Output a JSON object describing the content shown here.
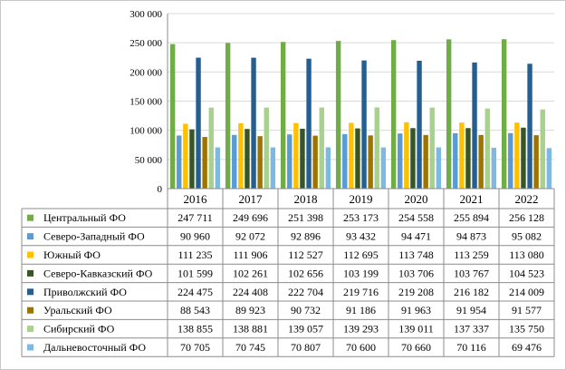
{
  "chart_data": {
    "type": "bar",
    "title": "",
    "xlabel": "",
    "ylabel": "",
    "ylim": [
      0,
      300000
    ],
    "y_ticks": [
      "0",
      "50 000",
      "100 000",
      "150 000",
      "200 000",
      "250 000",
      "300 000"
    ],
    "grid": true,
    "legend_placement": "left, as data table row headers",
    "categories": [
      "2016",
      "2017",
      "2018",
      "2019",
      "2020",
      "2021",
      "2022"
    ],
    "series": [
      {
        "name": "Центральный ФО",
        "color": "#70ad47",
        "values": [
          247711,
          249696,
          251398,
          253173,
          254558,
          255894,
          256128
        ],
        "labels": [
          "247 711",
          "249 696",
          "251 398",
          "253 173",
          "254 558",
          "255 894",
          "256 128"
        ]
      },
      {
        "name": "Северо-Западный ФО",
        "color": "#5b9bd5",
        "values": [
          90960,
          92072,
          92896,
          93432,
          94471,
          94873,
          95082
        ],
        "labels": [
          "90 960",
          "92 072",
          "92 896",
          "93 432",
          "94 471",
          "94 873",
          "95 082"
        ]
      },
      {
        "name": "Южный ФО",
        "color": "#ffc000",
        "values": [
          111235,
          111906,
          112527,
          112695,
          113748,
          113259,
          113080
        ],
        "labels": [
          "111 235",
          "111 906",
          "112 527",
          "112 695",
          "113 748",
          "113 259",
          "113 080"
        ]
      },
      {
        "name": "Северо-Кавказский ФО",
        "color": "#375623",
        "values": [
          101599,
          102261,
          102656,
          103199,
          103706,
          103767,
          104523
        ],
        "labels": [
          "101 599",
          "102 261",
          "102 656",
          "103 199",
          "103 706",
          "103 767",
          "104 523"
        ]
      },
      {
        "name": "Приволжский ФО",
        "color": "#255e91",
        "values": [
          224475,
          224408,
          222704,
          219716,
          219208,
          216182,
          214009
        ],
        "labels": [
          "224 475",
          "224 408",
          "222 704",
          "219 716",
          "219 208",
          "216 182",
          "214 009"
        ]
      },
      {
        "name": "Уральский ФО",
        "color": "#9e7400",
        "values": [
          88543,
          89923,
          90732,
          91186,
          91963,
          91954,
          91577
        ],
        "labels": [
          "88 543",
          "89 923",
          "90 732",
          "91 186",
          "91 963",
          "91 954",
          "91 577"
        ]
      },
      {
        "name": "Сибирский ФО",
        "color": "#a9d18e",
        "values": [
          138855,
          138881,
          139057,
          139293,
          139011,
          137337,
          135750
        ],
        "labels": [
          "138 855",
          "138 881",
          "139 057",
          "139 293",
          "139 011",
          "137 337",
          "135 750"
        ]
      },
      {
        "name": "Дальневосточный ФО",
        "color": "#7fb8e0",
        "values": [
          70705,
          70745,
          70807,
          70600,
          70660,
          70116,
          69476
        ],
        "labels": [
          "70 705",
          "70 745",
          "70 807",
          "70 600",
          "70 660",
          "70 116",
          "69 476"
        ]
      }
    ]
  }
}
